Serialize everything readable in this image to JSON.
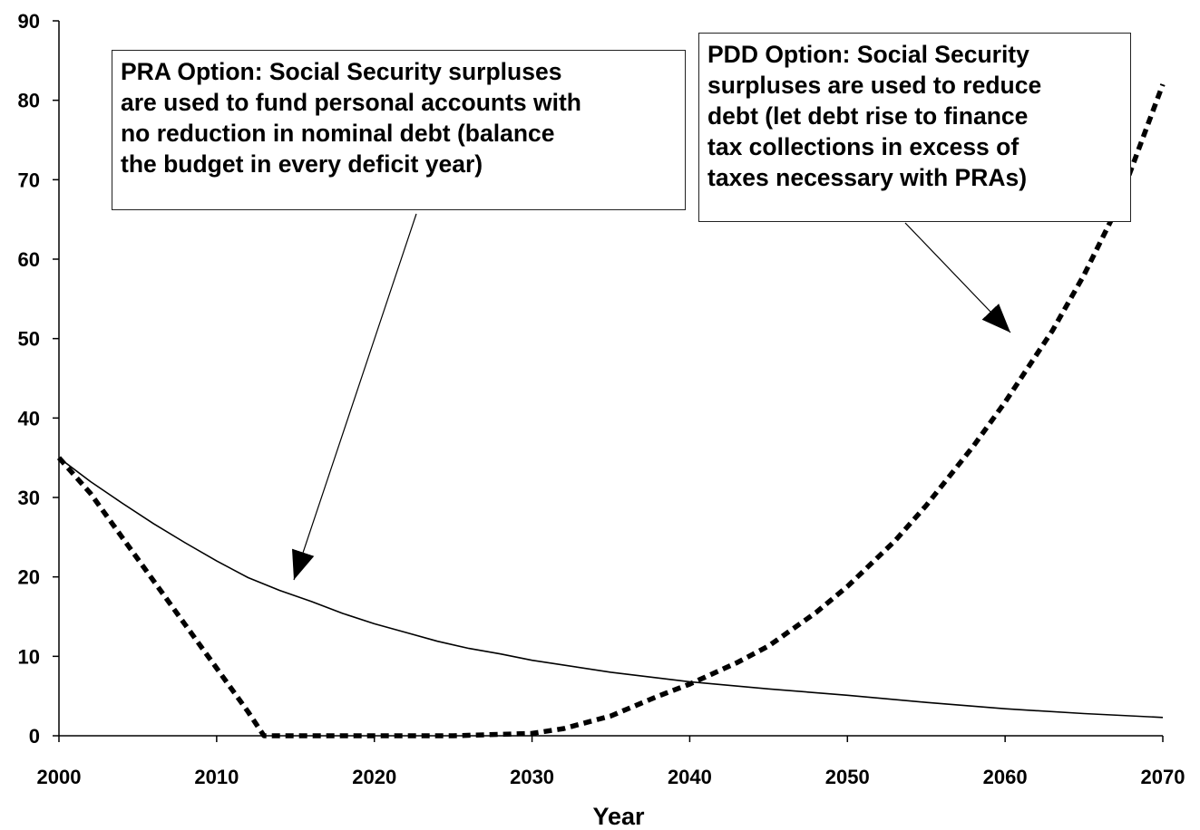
{
  "chart_data": {
    "type": "line",
    "title": "",
    "xlabel": "Year",
    "ylabel": "",
    "xlim": [
      2000,
      2070
    ],
    "ylim": [
      0,
      90
    ],
    "grid": false,
    "x_ticks": [
      "2000",
      "2010",
      "2020",
      "2030",
      "2040",
      "2050",
      "2060",
      "2070"
    ],
    "y_ticks": [
      "0",
      "10",
      "20",
      "30",
      "40",
      "50",
      "60",
      "70",
      "80",
      "90"
    ],
    "series": [
      {
        "style": "solid",
        "color": "#000000",
        "x": [
          2000,
          2002,
          2004,
          2006,
          2008,
          2010,
          2012,
          2014,
          2016,
          2018,
          2020,
          2022,
          2024,
          2026,
          2028,
          2030,
          2035,
          2040,
          2045,
          2050,
          2055,
          2060,
          2065,
          2070
        ],
        "values": [
          35,
          32,
          29.3,
          26.7,
          24.3,
          22,
          19.9,
          18.3,
          16.9,
          15.4,
          14.1,
          13,
          11.9,
          11,
          10.3,
          9.5,
          8,
          6.8,
          5.9,
          5.1,
          4.2,
          3.4,
          2.8,
          2.3
        ]
      },
      {
        "style": "dashed",
        "color": "#000000",
        "x": [
          2000,
          2002,
          2004,
          2006,
          2008,
          2010,
          2012,
          2013,
          2015,
          2020,
          2025,
          2030,
          2032,
          2035,
          2038,
          2040,
          2043,
          2045,
          2048,
          2050,
          2053,
          2055,
          2058,
          2060,
          2063,
          2065,
          2067,
          2070
        ],
        "values": [
          35,
          30.5,
          25,
          19.5,
          14,
          8.5,
          3,
          0,
          0,
          0,
          0,
          0.3,
          0.9,
          2.5,
          5,
          6.5,
          9.2,
          11.3,
          15.5,
          18.8,
          24.5,
          29,
          36.5,
          42,
          51,
          58,
          66,
          82
        ]
      }
    ],
    "annotations": [
      {
        "id": "pra",
        "lines": [
          "PRA Option: Social Security surpluses",
          "are used to fund personal accounts with",
          "no reduction in nominal debt (balance",
          "the budget in every deficit year)"
        ],
        "arrow_to": [
          2014.5,
          19
        ]
      },
      {
        "id": "pdd",
        "lines": [
          "PDD Option: Social Security",
          "surpluses are used to reduce",
          "debt (let debt rise to finance",
          "tax collections in excess of",
          "taxes necessary with PRAs)"
        ],
        "arrow_to": [
          2061,
          50
        ]
      }
    ]
  }
}
